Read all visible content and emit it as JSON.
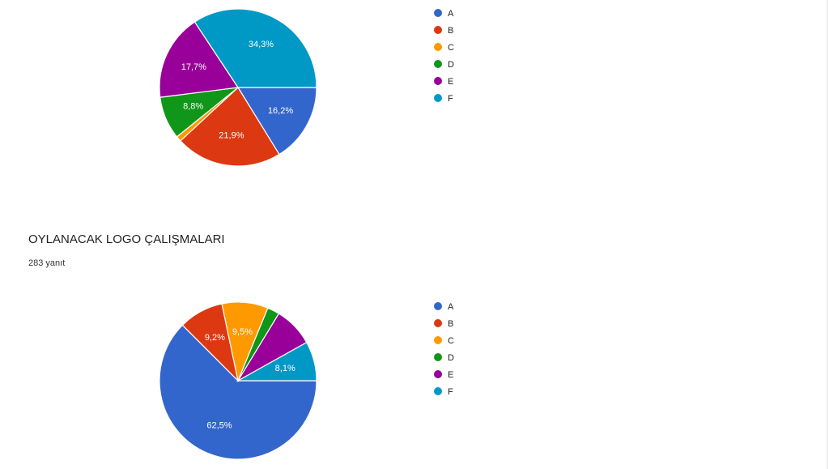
{
  "chart_data": [
    {
      "type": "pie",
      "categories": [
        "A",
        "B",
        "C",
        "D",
        "E",
        "F"
      ],
      "values": [
        16.2,
        21.9,
        1.1,
        8.8,
        17.7,
        34.3
      ],
      "value_labels": [
        "16,2%",
        "21,9%",
        null,
        "8,8%",
        "17,7%",
        "34,3%"
      ],
      "colors": [
        "#3366cc",
        "#dc3912",
        "#ff9900",
        "#109618",
        "#990099",
        "#0099c6"
      ]
    },
    {
      "type": "pie",
      "title": "OYLANACAK LOGO ÇALIŞMALARI",
      "subtitle": "283 yanıt",
      "categories": [
        "A",
        "B",
        "C",
        "D",
        "E",
        "F"
      ],
      "values": [
        62.5,
        9.2,
        9.5,
        2.5,
        8.2,
        8.1
      ],
      "value_labels": [
        "62,5%",
        "9,2%",
        "9,5%",
        null,
        null,
        "8,1%"
      ],
      "colors": [
        "#3366cc",
        "#dc3912",
        "#ff9900",
        "#109618",
        "#990099",
        "#0099c6"
      ]
    }
  ]
}
